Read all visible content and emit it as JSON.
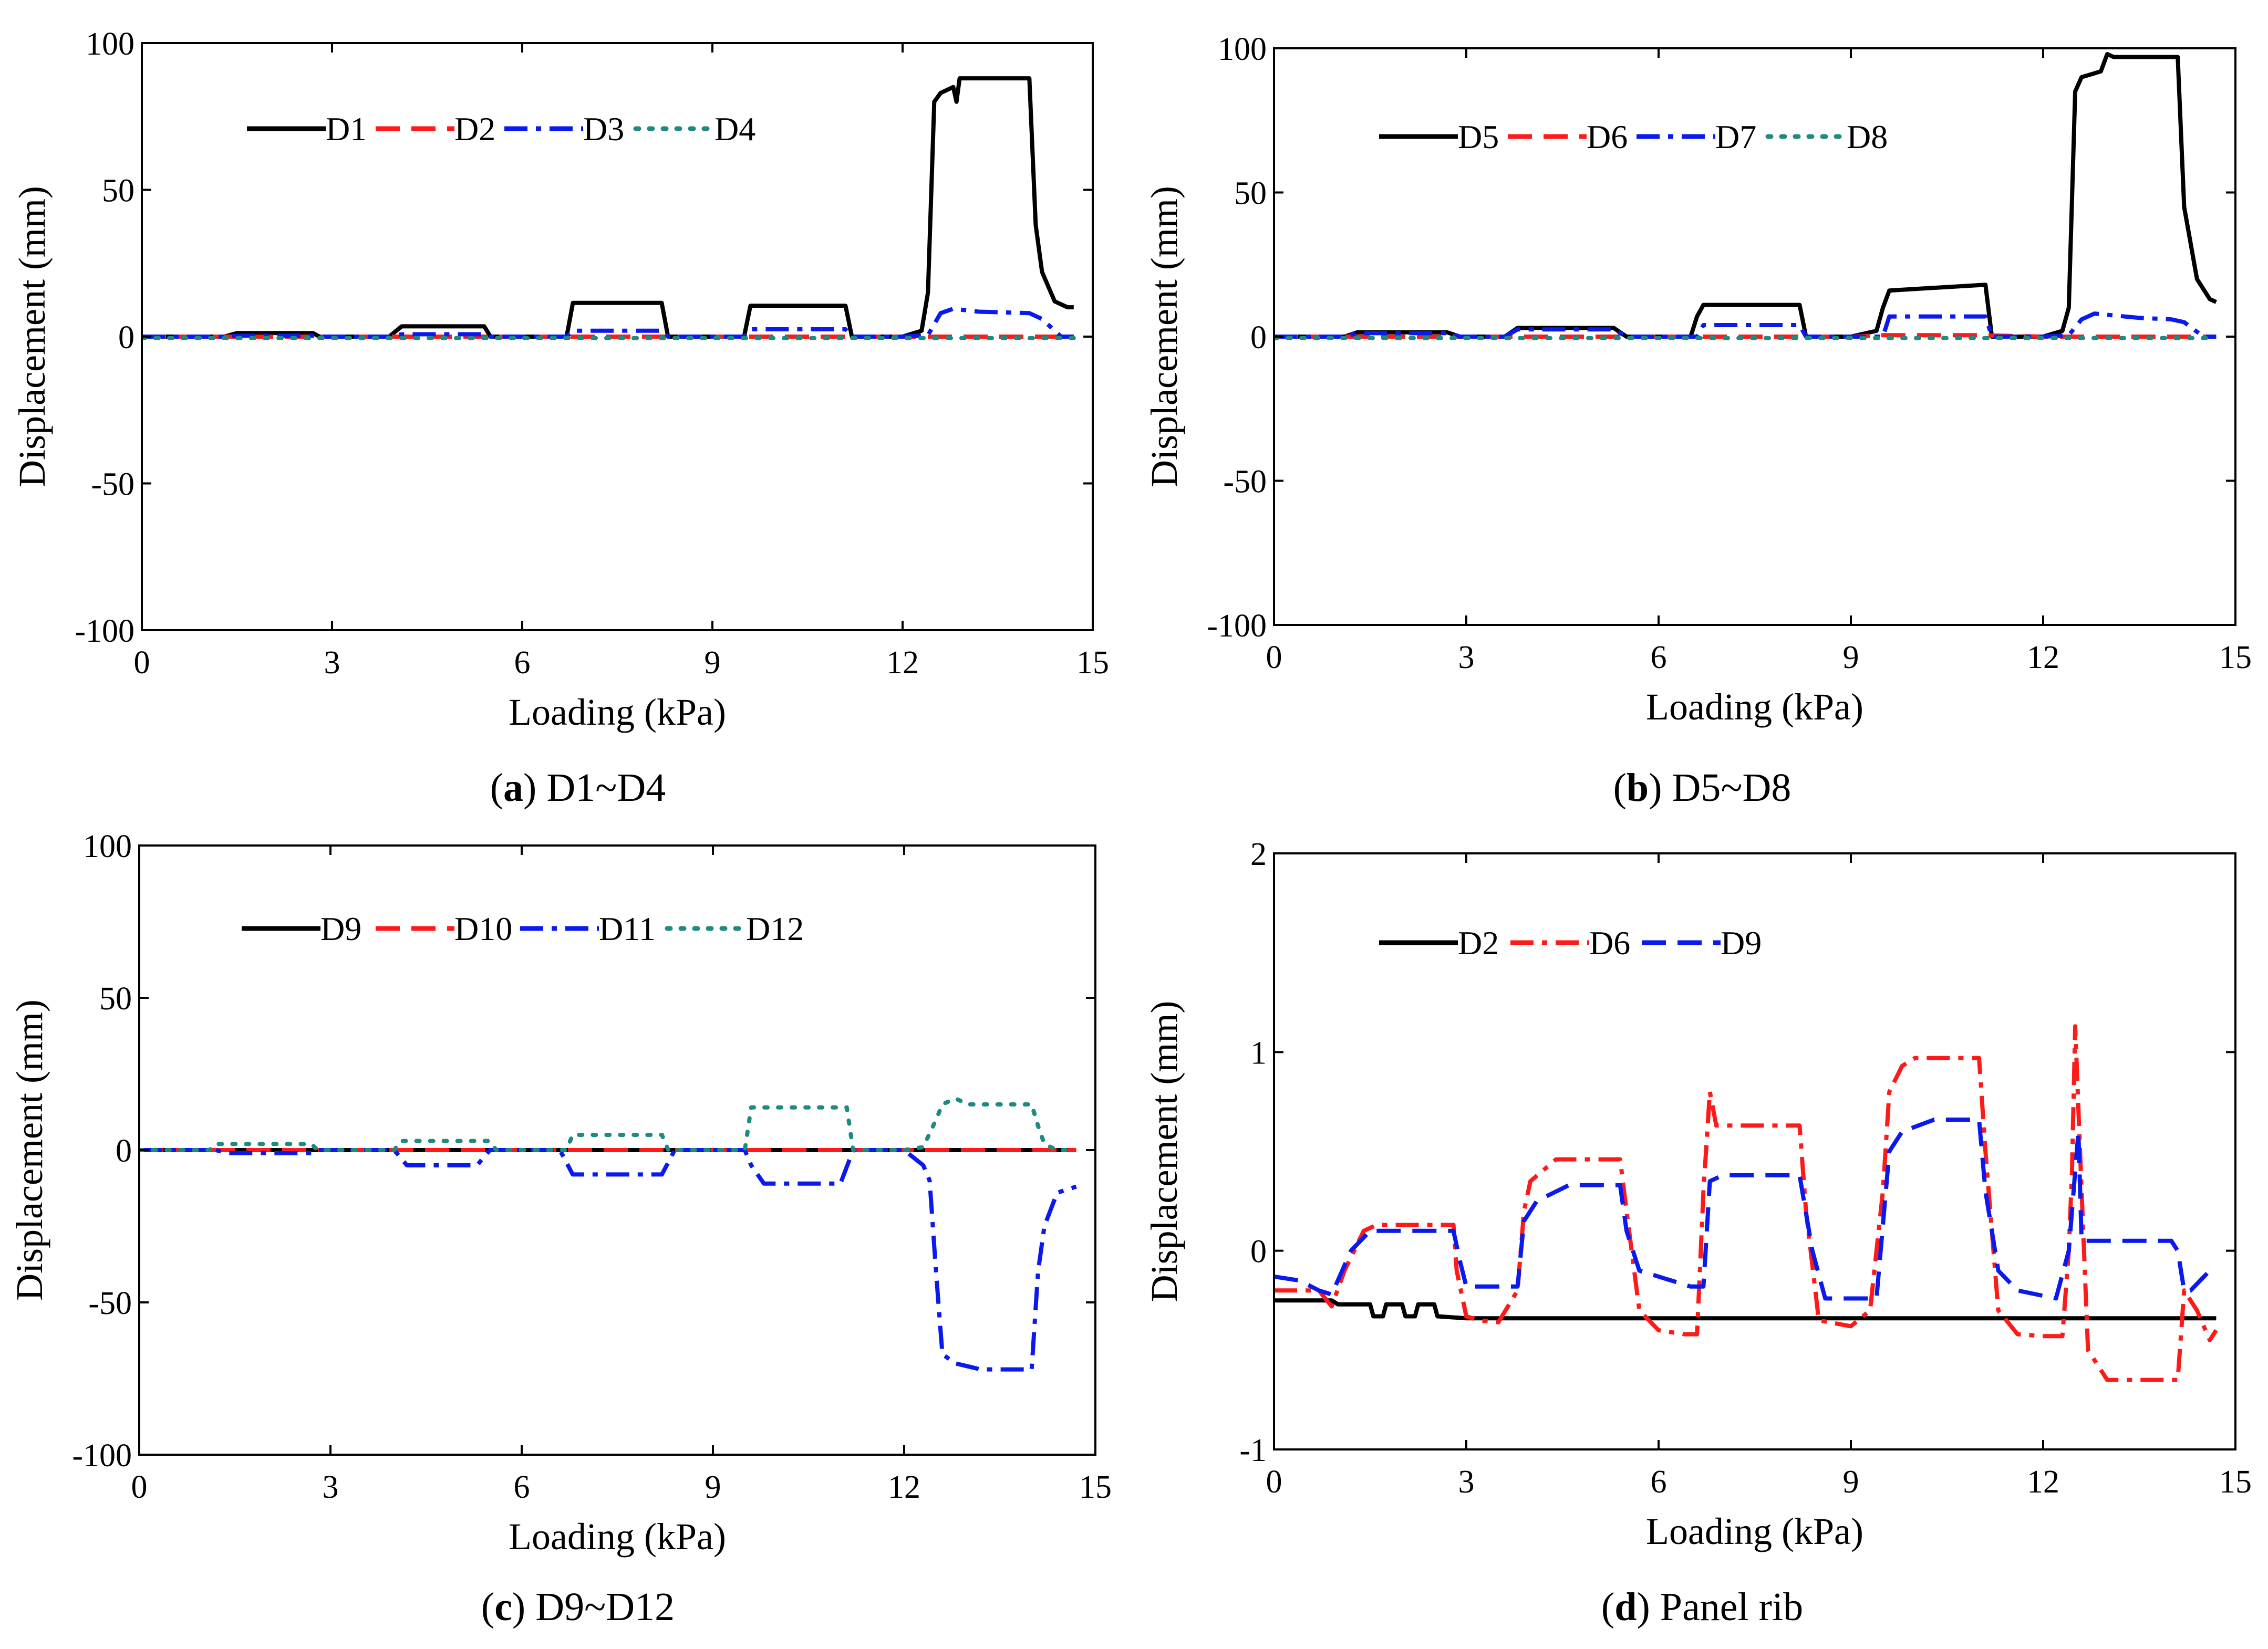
{
  "figure": {
    "panels": [
      {
        "letter": "a",
        "caption_rest": ") D1~D4",
        "ylabel": "Displacement (mm)",
        "xlabel": "Loading (kPa)"
      },
      {
        "letter": "b",
        "caption_rest": ") D5~D8",
        "ylabel": "Displacement (mm)",
        "xlabel": "Loading (kPa)"
      },
      {
        "letter": "c",
        "caption_rest": ") D9~D12",
        "ylabel": "Displacement (mm)",
        "xlabel": "Loading (kPa)"
      },
      {
        "letter": "d",
        "caption_rest": ") Panel rib",
        "ylabel": "Displacement (mm)",
        "xlabel": "Loading (kPa)"
      }
    ]
  },
  "colors": {
    "black": "#000000",
    "red": "#ff1a1a",
    "blue": "#0a1aee",
    "teal": "#1f8a80"
  },
  "chart_data": [
    {
      "type": "line",
      "title": "(a) D1~D4",
      "xlabel": "Loading (kPa)",
      "ylabel": "Displacement (mm)",
      "xlim": [
        0,
        15
      ],
      "ylim": [
        -100,
        100
      ],
      "xticks": [
        0,
        3,
        6,
        9,
        12,
        15
      ],
      "yticks": [
        -100,
        -50,
        0,
        50,
        100
      ],
      "legend_position": "top-left",
      "series": [
        {
          "name": "D1",
          "style": "solid",
          "color": "#000000",
          "x": [
            0,
            1.3,
            1.5,
            2.7,
            2.8,
            3,
            3.9,
            4.1,
            5.4,
            5.5,
            6,
            6.7,
            6.8,
            8.2,
            8.3,
            9,
            9.5,
            9.6,
            11.1,
            11.2,
            12,
            12.3,
            12.4,
            12.5,
            12.6,
            12.8,
            12.85,
            12.9,
            13.2,
            14,
            14.1,
            14.2,
            14.4,
            14.6,
            14.7
          ],
          "y": [
            0,
            0,
            1.2,
            1.2,
            0,
            0,
            0,
            3.5,
            3.5,
            0,
            0,
            0,
            11.5,
            11.5,
            0,
            0,
            0,
            10.5,
            10.5,
            0,
            0,
            2,
            15,
            80,
            83,
            85,
            80,
            88,
            88,
            88,
            38,
            22,
            12,
            10,
            10
          ]
        },
        {
          "name": "D2",
          "style": "dashed",
          "color": "#ff1a1a",
          "x": [
            0,
            14.7
          ],
          "y": [
            0,
            0
          ]
        },
        {
          "name": "D3",
          "style": "dashdot",
          "color": "#0a1aee",
          "x": [
            0,
            1.3,
            1.5,
            2.7,
            2.8,
            3,
            3.9,
            4.1,
            5.4,
            5.5,
            6,
            6.7,
            6.8,
            8.2,
            8.3,
            9,
            9.5,
            9.6,
            11.1,
            11.2,
            12,
            12.4,
            12.6,
            12.8,
            13.2,
            14,
            14.2,
            14.5,
            14.7
          ],
          "y": [
            0,
            0,
            0.3,
            0.3,
            0,
            0,
            0,
            0.8,
            0.8,
            0,
            0,
            0,
            2,
            2,
            0,
            0,
            0,
            2.5,
            2.5,
            0,
            0,
            0.5,
            8,
            9.5,
            8.5,
            8,
            6,
            0,
            0
          ]
        },
        {
          "name": "D4",
          "style": "dotted",
          "color": "#1f8a80",
          "x": [
            0,
            14.7
          ],
          "y": [
            -0.5,
            -0.5
          ]
        }
      ]
    },
    {
      "type": "line",
      "title": "(b) D5~D8",
      "xlabel": "Loading (kPa)",
      "ylabel": "Displacement (mm)",
      "xlim": [
        0,
        15
      ],
      "ylim": [
        -100,
        100
      ],
      "xticks": [
        0,
        3,
        6,
        9,
        12,
        15
      ],
      "yticks": [
        -100,
        -50,
        0,
        50,
        100
      ],
      "legend_position": "top-left",
      "series": [
        {
          "name": "D5",
          "style": "solid",
          "color": "#000000",
          "x": [
            0,
            1.1,
            1.3,
            2.7,
            2.9,
            3,
            3.6,
            3.8,
            5.3,
            5.5,
            6,
            6.5,
            6.6,
            6.7,
            8.2,
            8.3,
            9,
            9.4,
            9.5,
            9.6,
            11.1,
            11.2,
            12,
            12.3,
            12.4,
            12.5,
            12.6,
            12.9,
            13,
            13.1,
            14,
            14.1,
            14.2,
            14.4,
            14.6,
            14.7
          ],
          "y": [
            0,
            0,
            1.5,
            1.5,
            0,
            0,
            0,
            3,
            3,
            0,
            0,
            0,
            7,
            11,
            11,
            0,
            0,
            2,
            10,
            16,
            18,
            0,
            0,
            2,
            10,
            85,
            90,
            92,
            98,
            97,
            97,
            97,
            45,
            20,
            13,
            12
          ]
        },
        {
          "name": "D6",
          "style": "dashed",
          "color": "#ff1a1a",
          "x": [
            0,
            3,
            6,
            9,
            9.5,
            11,
            12,
            14.7
          ],
          "y": [
            0,
            0,
            0,
            0,
            0.5,
            0.5,
            0,
            0
          ]
        },
        {
          "name": "D7",
          "style": "dashdot",
          "color": "#0a1aee",
          "x": [
            0,
            1.1,
            1.3,
            2.7,
            2.9,
            3,
            3.6,
            3.8,
            5.3,
            5.5,
            6,
            6.6,
            6.7,
            8.2,
            8.3,
            9,
            9.5,
            9.6,
            11.1,
            11.2,
            12,
            12.4,
            12.6,
            12.8,
            13.5,
            14,
            14.2,
            14.5,
            14.7
          ],
          "y": [
            0,
            0,
            1.2,
            1.2,
            0,
            0,
            0,
            2.5,
            2.5,
            0,
            0,
            0,
            4,
            4,
            0,
            0,
            0,
            7,
            7,
            0,
            0,
            0.5,
            6,
            8,
            6.5,
            6,
            5,
            0,
            0
          ]
        },
        {
          "name": "D8",
          "style": "dotted",
          "color": "#1f8a80",
          "x": [
            0,
            14.7
          ],
          "y": [
            -0.5,
            -0.5
          ]
        }
      ]
    },
    {
      "type": "line",
      "title": "(c) D9~D12",
      "xlabel": "Loading (kPa)",
      "ylabel": "Displacement (mm)",
      "xlim": [
        0,
        15
      ],
      "ylim": [
        -100,
        100
      ],
      "xticks": [
        0,
        3,
        6,
        9,
        12,
        15
      ],
      "yticks": [
        -100,
        -50,
        0,
        50,
        100
      ],
      "legend_position": "top-left",
      "series": [
        {
          "name": "D9",
          "style": "solid",
          "color": "#000000",
          "x": [
            0,
            14.7
          ],
          "y": [
            0,
            0
          ]
        },
        {
          "name": "D10",
          "style": "dashed",
          "color": "#ff1a1a",
          "x": [
            0,
            14.7
          ],
          "y": [
            0,
            0
          ]
        },
        {
          "name": "D11",
          "style": "dashdot",
          "color": "#0a1aee",
          "x": [
            0,
            1.2,
            1.4,
            2.7,
            2.8,
            4.0,
            4.2,
            5.3,
            5.5,
            6,
            6.6,
            6.8,
            8.2,
            8.4,
            9,
            9.5,
            9.6,
            9.8,
            11,
            11.2,
            12,
            12.3,
            12.4,
            12.5,
            12.6,
            12.8,
            13.2,
            14,
            14.1,
            14.2,
            14.4,
            14.7
          ],
          "y": [
            0,
            0,
            -1,
            -1,
            0,
            0,
            -5,
            -5,
            0,
            0,
            0,
            -8,
            -8,
            0,
            0,
            0,
            -5,
            -11,
            -11,
            0,
            0,
            -5,
            -10,
            -40,
            -67,
            -70,
            -72,
            -72,
            -40,
            -25,
            -14,
            -12
          ]
        },
        {
          "name": "D12",
          "style": "dotted",
          "color": "#1f8a80",
          "x": [
            0,
            1.1,
            1.2,
            2.7,
            2.8,
            4,
            4.1,
            5.5,
            5.6,
            6,
            6.7,
            6.8,
            8.2,
            8.3,
            9,
            9.5,
            9.6,
            11.1,
            11.2,
            12,
            12.3,
            12.5,
            12.6,
            12.8,
            13,
            14,
            14.1,
            14.2,
            14.4,
            14.7
          ],
          "y": [
            0,
            0,
            2,
            2,
            0,
            0,
            3,
            3,
            0,
            0,
            0,
            5,
            5,
            0,
            0,
            0,
            14,
            14,
            0,
            0,
            1,
            10,
            15,
            17,
            15,
            15,
            8,
            2,
            0,
            0
          ]
        }
      ]
    },
    {
      "type": "line",
      "title": "(d) Panel rib",
      "xlabel": "Loading (kPa)",
      "ylabel": "Displacement (mm)",
      "xlim": [
        0,
        15
      ],
      "ylim": [
        -1,
        2
      ],
      "xticks": [
        0,
        3,
        6,
        9,
        12,
        15
      ],
      "yticks": [
        -1,
        0,
        1,
        2
      ],
      "legend_position": "top-left",
      "series": [
        {
          "name": "D2",
          "style": "solid",
          "color": "#000000",
          "x": [
            0,
            0.9,
            1.0,
            1.5,
            1.55,
            1.7,
            1.75,
            2.0,
            2.05,
            2.2,
            2.25,
            2.5,
            2.55,
            3,
            14.7
          ],
          "y": [
            -0.25,
            -0.25,
            -0.27,
            -0.27,
            -0.33,
            -0.33,
            -0.27,
            -0.27,
            -0.33,
            -0.33,
            -0.27,
            -0.27,
            -0.33,
            -0.34,
            -0.34
          ]
        },
        {
          "name": "D6",
          "style": "dashdot",
          "color": "#ff1a1a",
          "x": [
            0,
            0.7,
            0.9,
            1.1,
            1.4,
            1.6,
            2.8,
            2.85,
            3.0,
            3.2,
            3.5,
            3.8,
            3.9,
            4.0,
            4.4,
            5.4,
            5.5,
            5.7,
            6.0,
            6.4,
            6.6,
            6.7,
            6.8,
            6.9,
            7,
            8.2,
            8.3,
            8.5,
            9.0,
            9.3,
            9.5,
            9.6,
            9.8,
            10,
            11,
            11.1,
            11.3,
            11.6,
            12.0,
            12.3,
            12.4,
            12.45,
            12.5,
            12.6,
            12.7,
            13,
            13.2,
            14,
            14.1,
            14.2,
            14.4,
            14.6,
            14.7
          ],
          "y": [
            -0.2,
            -0.2,
            -0.28,
            -0.1,
            0.1,
            0.13,
            0.13,
            -0.1,
            -0.33,
            -0.35,
            -0.36,
            -0.2,
            0.2,
            0.35,
            0.46,
            0.46,
            0.2,
            -0.3,
            -0.4,
            -0.42,
            -0.42,
            0.3,
            0.8,
            0.63,
            0.63,
            0.63,
            0.2,
            -0.35,
            -0.38,
            -0.3,
            0.3,
            0.8,
            0.93,
            0.97,
            0.97,
            0.5,
            -0.3,
            -0.42,
            -0.43,
            -0.43,
            0,
            0.4,
            1.13,
            0.3,
            -0.5,
            -0.65,
            -0.65,
            -0.65,
            -0.65,
            -0.2,
            -0.3,
            -0.45,
            -0.4
          ]
        },
        {
          "name": "D9",
          "style": "dashed",
          "color": "#0a1aee",
          "x": [
            0,
            0.4,
            0.7,
            0.9,
            1.2,
            1.5,
            2.8,
            2.9,
            3.0,
            3.8,
            3.9,
            4.1,
            4.6,
            5.4,
            5.5,
            5.7,
            6.5,
            6.7,
            6.8,
            7,
            8.2,
            8.4,
            8.6,
            9.4,
            9.6,
            9.8,
            10.3,
            10.7,
            11.0,
            11.1,
            11.3,
            11.6,
            12.2,
            12.4,
            12.5,
            12.55,
            12.6,
            13,
            14,
            14.1,
            14.2,
            14.3,
            14.6
          ],
          "y": [
            -0.13,
            -0.15,
            -0.2,
            -0.22,
            0,
            0.1,
            0.1,
            -0.05,
            -0.18,
            -0.18,
            0.15,
            0.25,
            0.33,
            0.33,
            0.1,
            -0.1,
            -0.18,
            -0.18,
            0.35,
            0.38,
            0.38,
            0,
            -0.24,
            -0.24,
            0.5,
            0.6,
            0.66,
            0.66,
            0.66,
            0.3,
            -0.1,
            -0.2,
            -0.24,
            0,
            0.4,
            0.6,
            0.05,
            0.05,
            0.05,
            0,
            -0.2,
            -0.2,
            -0.1
          ]
        }
      ]
    }
  ]
}
